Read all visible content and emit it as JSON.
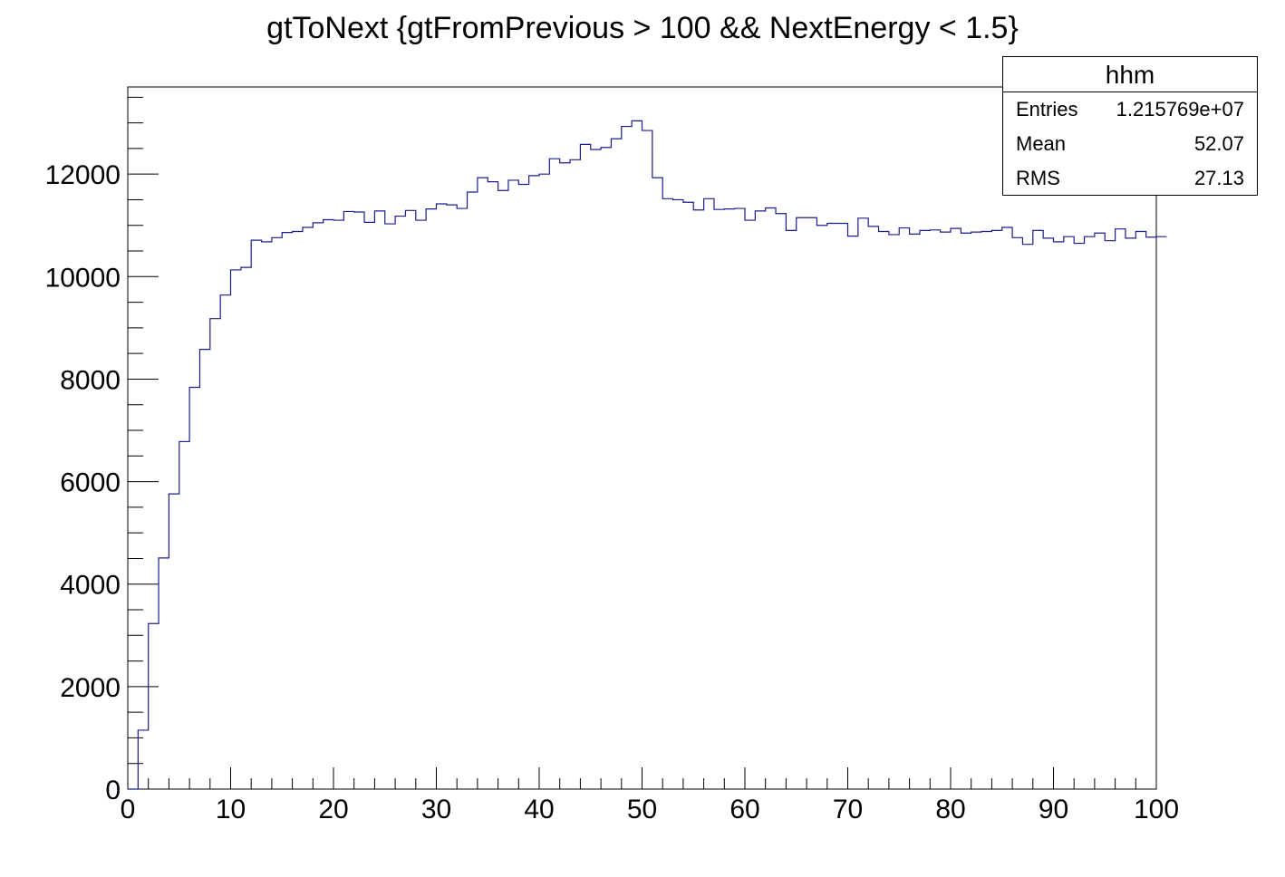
{
  "chart_data": {
    "type": "bar",
    "title": "gtToNext {gtFromPrevious > 100 && NextEnergy < 1.5}",
    "xlabel": "",
    "ylabel": "",
    "xlim": [
      0,
      100
    ],
    "ylim": [
      0,
      13700
    ],
    "x_ticks": [
      "0",
      "10",
      "20",
      "30",
      "40",
      "50",
      "60",
      "70",
      "80",
      "90",
      "100"
    ],
    "y_ticks": [
      "0",
      "2000",
      "4000",
      "6000",
      "8000",
      "10000",
      "12000"
    ],
    "bin_edges_start": 0,
    "bin_width": 1,
    "values": [
      0,
      1150,
      3230,
      4510,
      5760,
      6780,
      7840,
      8580,
      9180,
      9640,
      10130,
      10180,
      10710,
      10680,
      10760,
      10860,
      10880,
      10960,
      11050,
      11110,
      11100,
      11270,
      11260,
      11060,
      11280,
      11030,
      11180,
      11290,
      11100,
      11320,
      11420,
      11400,
      11330,
      11650,
      11930,
      11850,
      11680,
      11880,
      11800,
      11970,
      12000,
      12300,
      12220,
      12280,
      12580,
      12480,
      12520,
      12690,
      12930,
      13040,
      12850,
      11930,
      11520,
      11500,
      11450,
      11300,
      11520,
      11310,
      11320,
      11330,
      11100,
      11280,
      11340,
      11230,
      10900,
      11150,
      11150,
      11000,
      11040,
      11040,
      10790,
      11140,
      10980,
      10880,
      10820,
      10950,
      10830,
      10900,
      10910,
      10870,
      10940,
      10850,
      10870,
      10880,
      10900,
      10960,
      10760,
      10630,
      10900,
      10750,
      10680,
      10780,
      10650,
      10780,
      10850,
      10700,
      10930,
      10750,
      10880,
      10770,
      10780
    ],
    "line_color": "#1c1c8c",
    "grid": false,
    "legend": "none"
  },
  "stats_box": {
    "name": "hhm",
    "rows": [
      {
        "label": "Entries",
        "value": "1.215769e+07"
      },
      {
        "label": "Mean",
        "value": "52.07"
      },
      {
        "label": "RMS",
        "value": "27.13"
      }
    ]
  }
}
